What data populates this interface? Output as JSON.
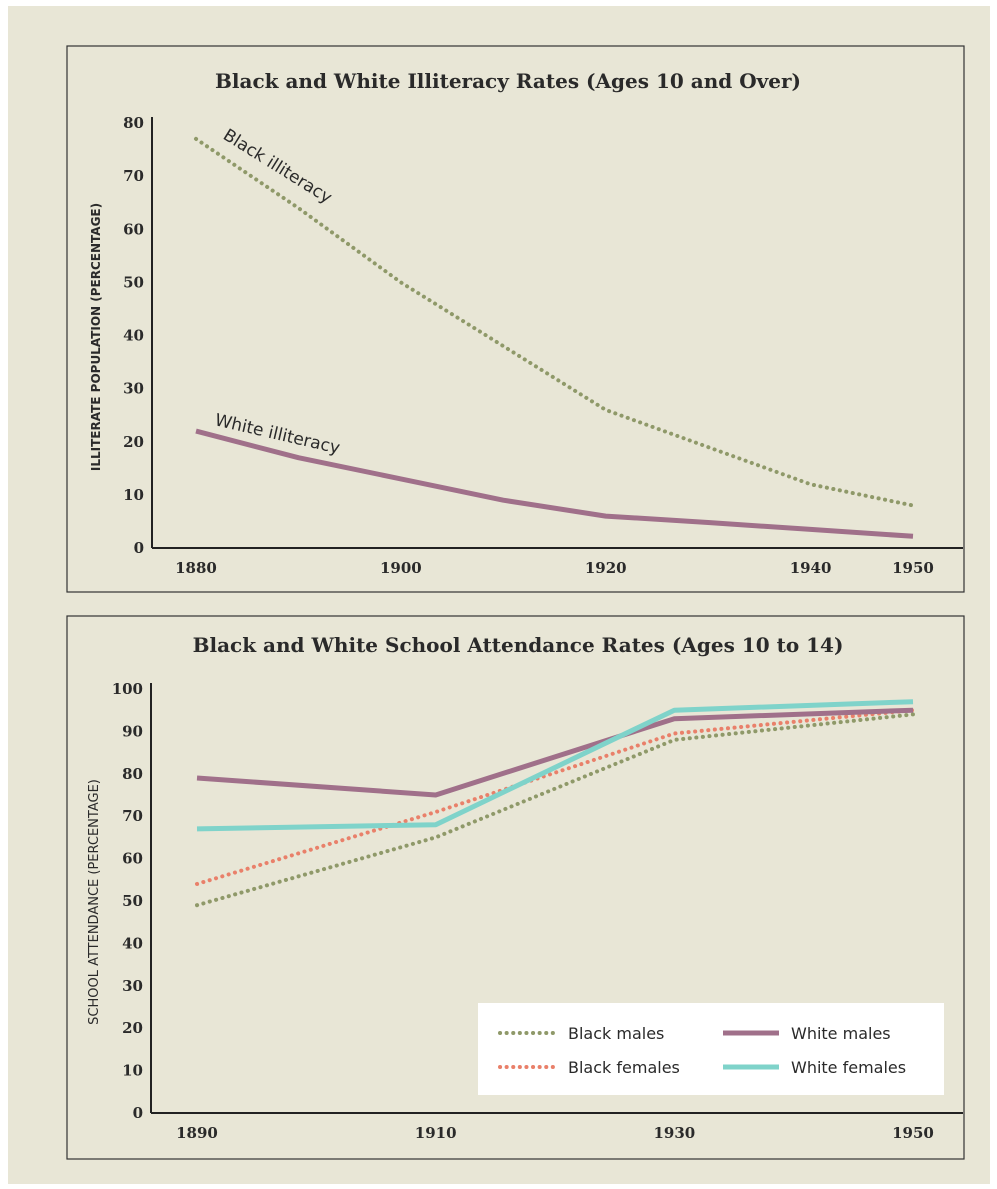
{
  "chart_data": [
    {
      "type": "line",
      "title": "Black and White Illiteracy Rates (Ages 10 and Over)",
      "xlabel": "",
      "ylabel": "ILLITERATE POPULATION (PERCENTAGE)",
      "x_ticks": [
        "1880",
        "1900",
        "1920",
        "1940",
        "1950"
      ],
      "y_ticks": [
        "0",
        "10",
        "20",
        "30",
        "40",
        "50",
        "60",
        "70",
        "80"
      ],
      "xlim": [
        1880,
        1950
      ],
      "ylim": [
        0,
        80
      ],
      "grid": false,
      "series": [
        {
          "name": "Black illiteracy",
          "style": "dotted",
          "color": "#8f9969",
          "x": [
            1880,
            1890,
            1900,
            1910,
            1920,
            1930,
            1940,
            1950
          ],
          "y": [
            77,
            64,
            50,
            38,
            26,
            19,
            12,
            8
          ]
        },
        {
          "name": "White illiteracy",
          "style": "solid",
          "color": "#a0708a",
          "x": [
            1880,
            1890,
            1900,
            1910,
            1920,
            1930,
            1940,
            1950
          ],
          "y": [
            22,
            17,
            13,
            9,
            6,
            4.8,
            3.5,
            2.2
          ]
        }
      ],
      "annotations": [
        "Black illiteracy",
        "White illiteracy"
      ]
    },
    {
      "type": "line",
      "title": "Black and White School Attendance Rates (Ages 10 to 14)",
      "xlabel": "",
      "ylabel": "SCHOOL ATTENDANCE (PERCENTAGE)",
      "x_ticks": [
        "1890",
        "1910",
        "1930",
        "1950"
      ],
      "y_ticks": [
        "0",
        "10",
        "20",
        "30",
        "40",
        "50",
        "60",
        "70",
        "80",
        "90",
        "100"
      ],
      "xlim": [
        1890,
        1950
      ],
      "ylim": [
        0,
        100
      ],
      "grid": false,
      "legend_position": "bottom-right",
      "series": [
        {
          "name": "Black males",
          "style": "dotted",
          "color": "#8f9969",
          "x": [
            1890,
            1910,
            1930,
            1950
          ],
          "y": [
            49,
            65,
            88,
            94
          ]
        },
        {
          "name": "Black females",
          "style": "dotted",
          "color": "#e9806a",
          "x": [
            1890,
            1910,
            1930,
            1950
          ],
          "y": [
            54,
            71,
            89.5,
            95
          ]
        },
        {
          "name": "White males",
          "style": "solid",
          "color": "#a0708a",
          "x": [
            1890,
            1910,
            1930,
            1950
          ],
          "y": [
            79,
            75,
            93,
            95
          ]
        },
        {
          "name": "White females",
          "style": "solid",
          "color": "#7fd3ca",
          "x": [
            1890,
            1910,
            1930,
            1950
          ],
          "y": [
            67,
            68,
            95,
            97
          ]
        }
      ]
    }
  ]
}
